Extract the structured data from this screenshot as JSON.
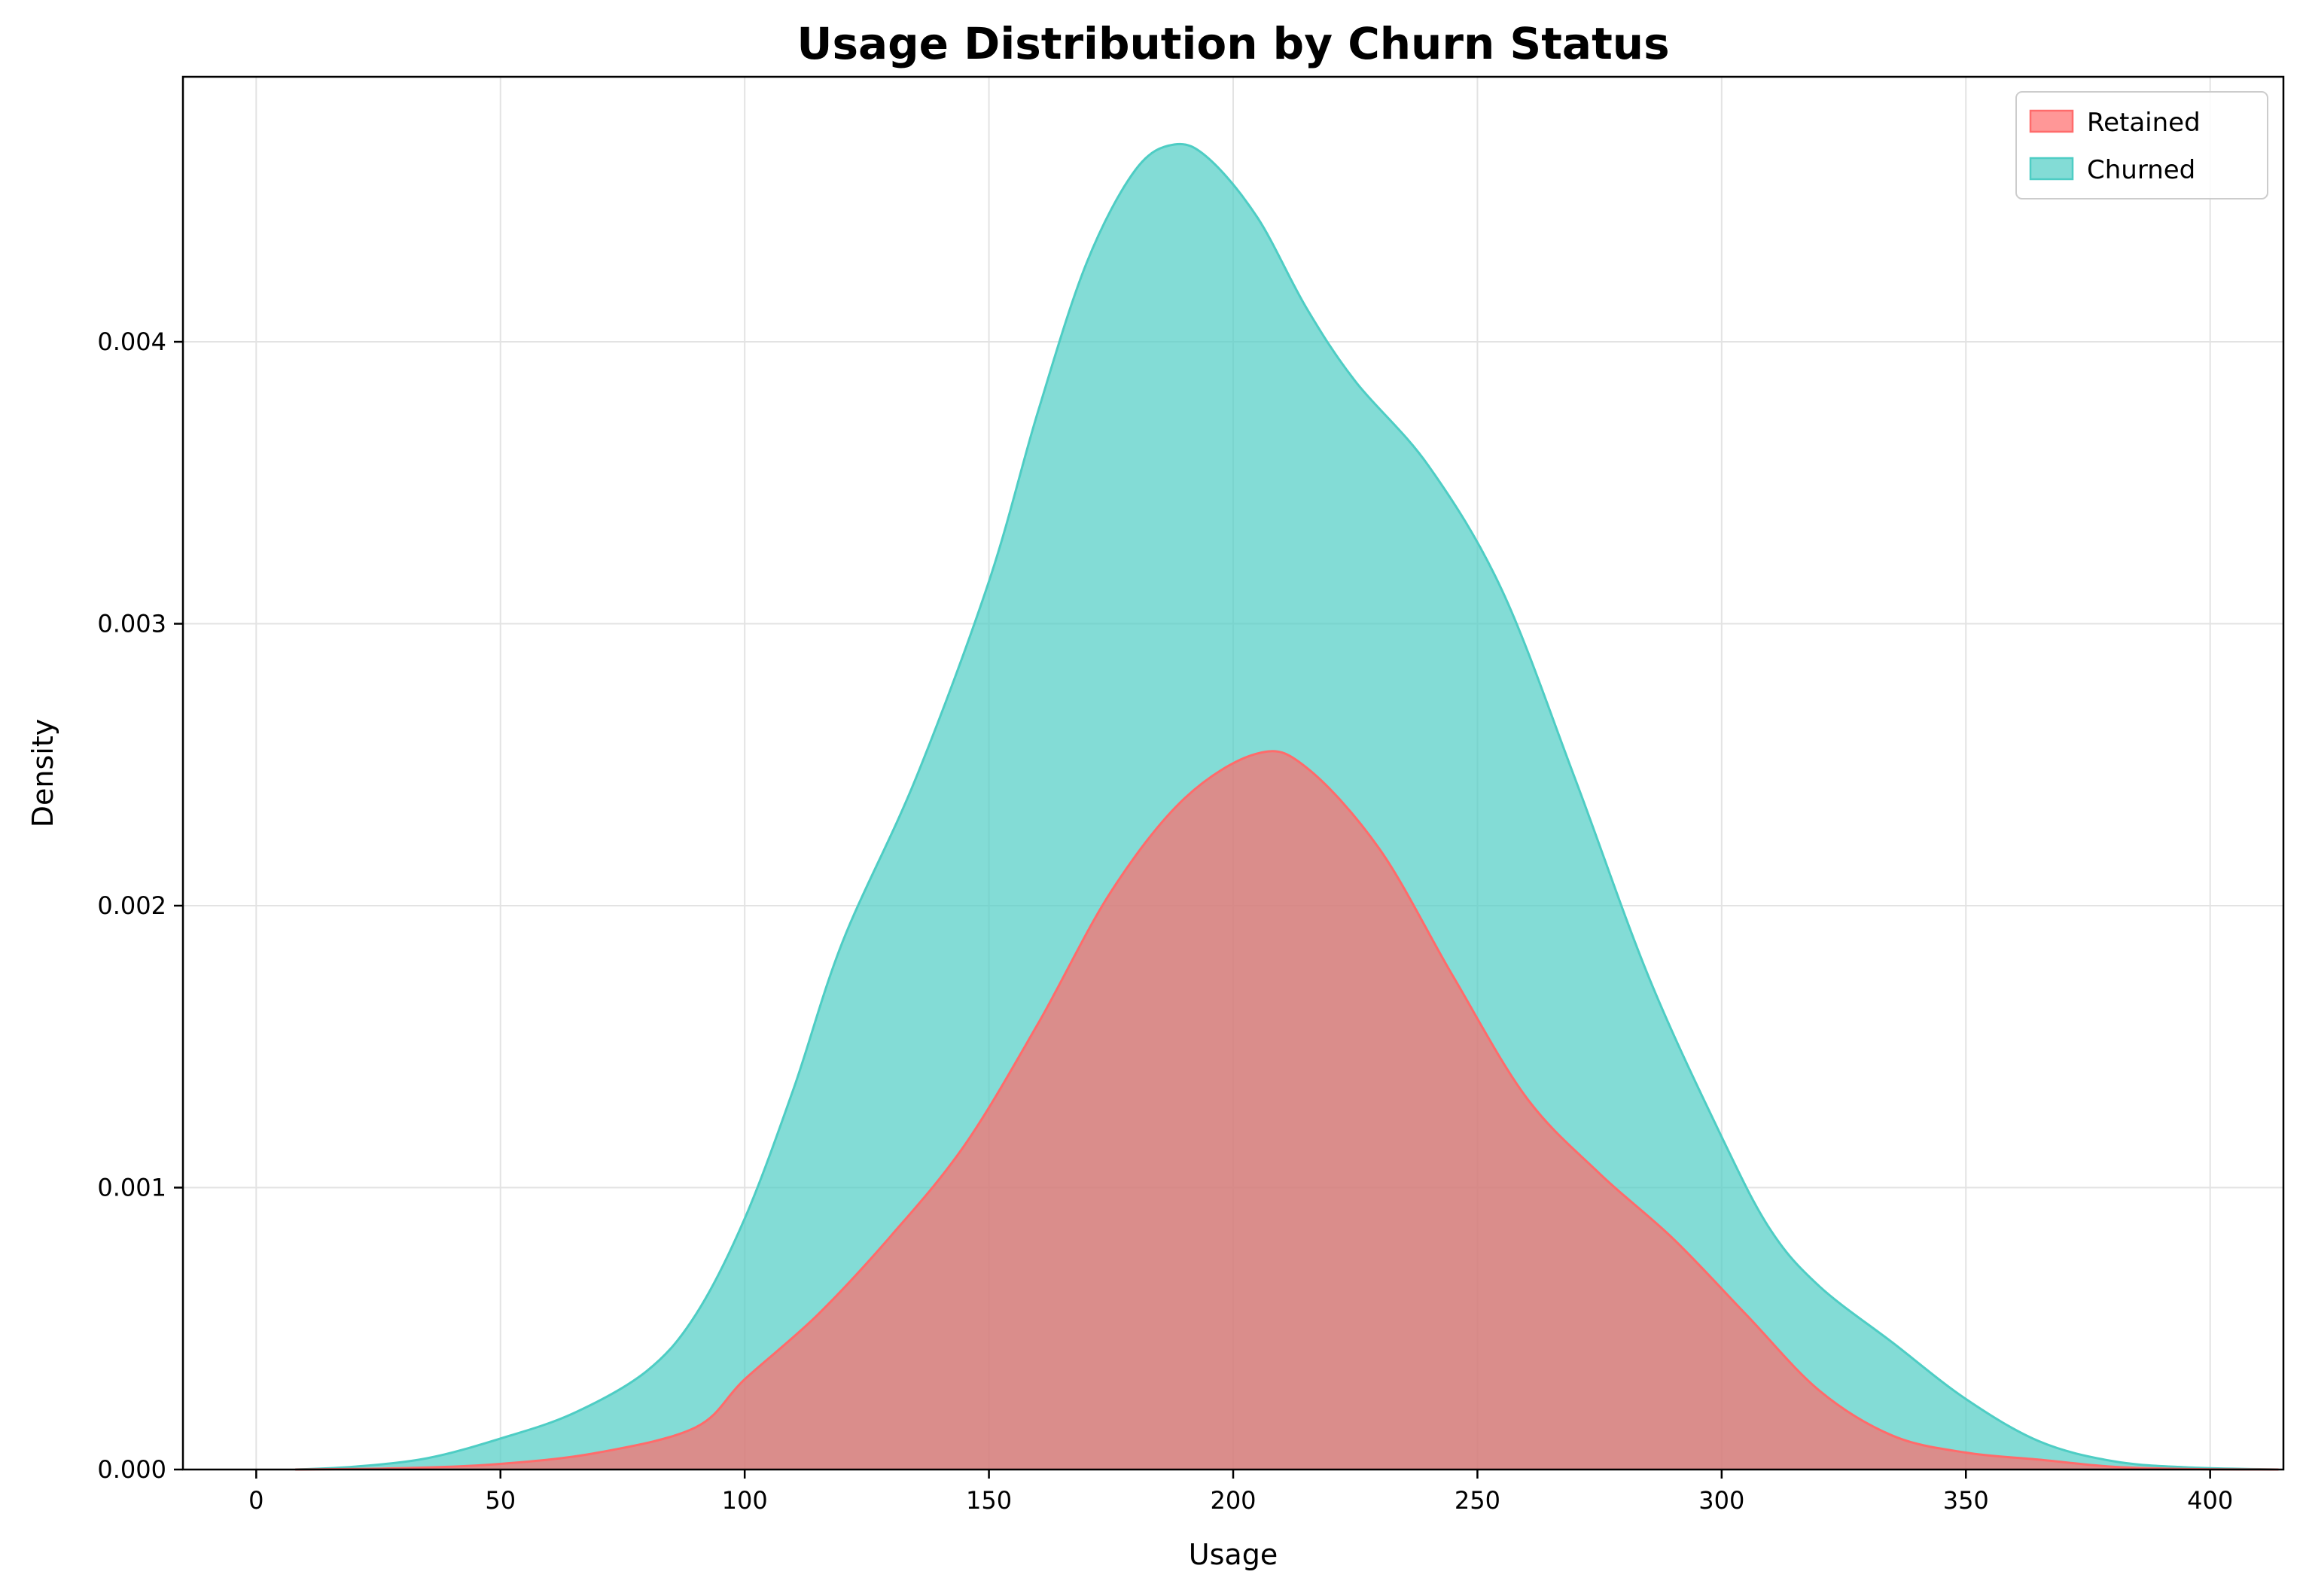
{
  "chart_data": {
    "type": "area",
    "title": "Usage Distribution by Churn Status",
    "xlabel": "Usage",
    "ylabel": "Density",
    "xlim": [
      -15,
      415
    ],
    "ylim": [
      0,
      0.00494
    ],
    "xticks": [
      0,
      50,
      100,
      150,
      200,
      250,
      300,
      350,
      400
    ],
    "xtick_labels": [
      "0",
      "50",
      "100",
      "150",
      "200",
      "250",
      "300",
      "350",
      "400"
    ],
    "yticks": [
      0,
      0.001,
      0.002,
      0.003,
      0.004
    ],
    "ytick_labels": [
      "0.000",
      "0.001",
      "0.002",
      "0.003",
      "0.004"
    ],
    "grid": true,
    "legend_position": "top-right",
    "series": [
      {
        "name": "Retained",
        "color": "#ff6b6b",
        "points": [
          [
            8,
            0
          ],
          [
            30,
            5e-06
          ],
          [
            50,
            2e-05
          ],
          [
            70,
            6e-05
          ],
          [
            90,
            0.00015
          ],
          [
            100,
            0.00032
          ],
          [
            115,
            0.00055
          ],
          [
            130,
            0.00083
          ],
          [
            145,
            0.00115
          ],
          [
            160,
            0.00158
          ],
          [
            175,
            0.00205
          ],
          [
            190,
            0.00238
          ],
          [
            205,
            0.00254
          ],
          [
            215,
            0.00249
          ],
          [
            230,
            0.0022
          ],
          [
            245,
            0.00175
          ],
          [
            260,
            0.00132
          ],
          [
            275,
            0.00105
          ],
          [
            290,
            0.00082
          ],
          [
            305,
            0.00055
          ],
          [
            320,
            0.00028
          ],
          [
            335,
            0.00012
          ],
          [
            350,
            6e-05
          ],
          [
            365,
            3.5e-05
          ],
          [
            380,
            1e-05
          ],
          [
            395,
            2e-06
          ],
          [
            414,
            0
          ]
        ]
      },
      {
        "name": "Churned",
        "color": "#4ecdc4",
        "points": [
          [
            8,
            0
          ],
          [
            20,
            1e-05
          ],
          [
            35,
            4e-05
          ],
          [
            50,
            0.00011
          ],
          [
            65,
            0.0002
          ],
          [
            80,
            0.00035
          ],
          [
            90,
            0.00055
          ],
          [
            100,
            0.00089
          ],
          [
            110,
            0.00135
          ],
          [
            120,
            0.00187
          ],
          [
            135,
            0.00245
          ],
          [
            150,
            0.00315
          ],
          [
            160,
            0.00375
          ],
          [
            170,
            0.00428
          ],
          [
            180,
            0.00461
          ],
          [
            188,
            0.0047
          ],
          [
            195,
            0.00465
          ],
          [
            205,
            0.00444
          ],
          [
            215,
            0.00412
          ],
          [
            225,
            0.00386
          ],
          [
            240,
            0.00356
          ],
          [
            255,
            0.00312
          ],
          [
            270,
            0.00245
          ],
          [
            285,
            0.00175
          ],
          [
            300,
            0.00118
          ],
          [
            310,
            0.00085
          ],
          [
            320,
            0.00065
          ],
          [
            335,
            0.00045
          ],
          [
            350,
            0.00025
          ],
          [
            365,
            0.0001
          ],
          [
            380,
            3e-05
          ],
          [
            395,
            8e-06
          ],
          [
            414,
            0
          ]
        ]
      }
    ]
  }
}
